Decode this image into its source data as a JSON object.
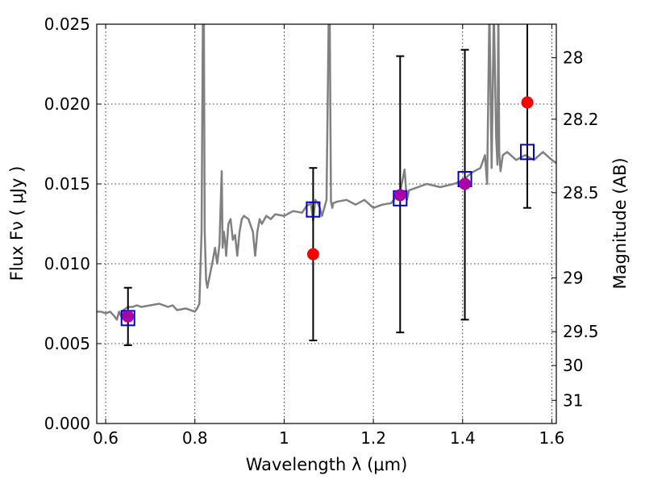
{
  "chart_data": {
    "type": "scatter",
    "xlabel": "Wavelength  λ (μm)",
    "ylabel": "Flux  Fν  ( μJy )",
    "ylabel_right": "Magnitude (AB)",
    "xlim": [
      0.58,
      1.61
    ],
    "ylim": [
      0,
      0.025
    ],
    "x_ticks": [
      0.6,
      0.8,
      1.0,
      1.2,
      1.4,
      1.6
    ],
    "x_tick_labels": [
      "0.6",
      "0.8",
      "1",
      "1.2",
      "1.4",
      "1.6"
    ],
    "y_ticks": [
      0,
      0.005,
      0.01,
      0.015,
      0.02,
      0.025
    ],
    "y_tick_labels": [
      "0.000",
      "0.005",
      "0.010",
      "0.015",
      "0.020",
      "0.025"
    ],
    "right_ticks": [
      {
        "mag": "28",
        "flux": 0.0229
      },
      {
        "mag": "28.2",
        "flux": 0.01905
      },
      {
        "mag": "28.5",
        "flux": 0.01445
      },
      {
        "mag": "29",
        "flux": 0.00912
      },
      {
        "mag": "29.5",
        "flux": 0.00575
      },
      {
        "mag": "30",
        "flux": 0.00363
      },
      {
        "mag": "31",
        "flux": 0.00145
      }
    ],
    "grid": true,
    "colors": {
      "spectrum": "#808080",
      "model_marker": "#0000cc",
      "observed": "#ff0000",
      "overlap": "#aa00aa",
      "errorbar": "#000000"
    },
    "spectrum": {
      "x": [
        0.58,
        0.59,
        0.6,
        0.61,
        0.62,
        0.625,
        0.63,
        0.635,
        0.64,
        0.645,
        0.65,
        0.66,
        0.67,
        0.68,
        0.7,
        0.72,
        0.74,
        0.75,
        0.76,
        0.78,
        0.79,
        0.8,
        0.805,
        0.81,
        0.815,
        0.818,
        0.82,
        0.822,
        0.825,
        0.828,
        0.83,
        0.84,
        0.845,
        0.85,
        0.855,
        0.86,
        0.862,
        0.865,
        0.868,
        0.87,
        0.875,
        0.88,
        0.885,
        0.89,
        0.895,
        0.9,
        0.905,
        0.91,
        0.92,
        0.93,
        0.935,
        0.94,
        0.945,
        0.95,
        0.96,
        0.97,
        0.98,
        1.0,
        1.02,
        1.04,
        1.05,
        1.06,
        1.065,
        1.07,
        1.075,
        1.08,
        1.085,
        1.09,
        1.095,
        1.1,
        1.102,
        1.105,
        1.108,
        1.11,
        1.12,
        1.14,
        1.16,
        1.18,
        1.2,
        1.22,
        1.24,
        1.26,
        1.27,
        1.275,
        1.28,
        1.3,
        1.32,
        1.35,
        1.38,
        1.4,
        1.42,
        1.44,
        1.45,
        1.455,
        1.46,
        1.465,
        1.47,
        1.475,
        1.478,
        1.48,
        1.482,
        1.485,
        1.49,
        1.5,
        1.52,
        1.54,
        1.56,
        1.58,
        1.6,
        1.61
      ],
      "y": [
        0.007,
        0.007,
        0.0069,
        0.007,
        0.0067,
        0.0065,
        0.007,
        0.0067,
        0.0071,
        0.0072,
        0.0073,
        0.0073,
        0.0074,
        0.0073,
        0.0074,
        0.0075,
        0.0073,
        0.0074,
        0.0071,
        0.0072,
        0.0071,
        0.007,
        0.0072,
        0.0075,
        0.012,
        0.026,
        0.026,
        0.012,
        0.009,
        0.0085,
        0.0088,
        0.0102,
        0.011,
        0.01,
        0.0112,
        0.0158,
        0.011,
        0.012,
        0.0113,
        0.0105,
        0.0125,
        0.0128,
        0.0115,
        0.0118,
        0.0105,
        0.012,
        0.0128,
        0.013,
        0.0128,
        0.012,
        0.0105,
        0.012,
        0.0128,
        0.0125,
        0.013,
        0.0128,
        0.0131,
        0.013,
        0.0133,
        0.0132,
        0.0136,
        0.0138,
        0.0127,
        0.014,
        0.0138,
        0.0135,
        0.013,
        0.0135,
        0.014,
        0.026,
        0.026,
        0.0139,
        0.0135,
        0.0138,
        0.0139,
        0.014,
        0.0137,
        0.014,
        0.0135,
        0.0137,
        0.0138,
        0.0145,
        0.0159,
        0.014,
        0.0146,
        0.0148,
        0.015,
        0.0148,
        0.015,
        0.0152,
        0.0157,
        0.016,
        0.0168,
        0.015,
        0.026,
        0.016,
        0.026,
        0.018,
        0.0162,
        0.026,
        0.017,
        0.0158,
        0.0168,
        0.017,
        0.0165,
        0.0168,
        0.0165,
        0.017,
        0.0165,
        0.0163
      ]
    },
    "series": [
      {
        "role": "model-markers",
        "marker": "open-square",
        "x": [
          0.65,
          1.065,
          1.26,
          1.405,
          1.545
        ],
        "y": [
          0.0066,
          0.0134,
          0.0141,
          0.0153,
          0.017
        ]
      },
      {
        "role": "observed",
        "marker": "filled-circle",
        "x": [
          0.65,
          1.065,
          1.26,
          1.405,
          1.545
        ],
        "y": [
          0.0067,
          0.0106,
          0.0143,
          0.015,
          0.0201
        ],
        "yerr_low": [
          0.0049,
          0.0052,
          0.0057,
          0.0065,
          0.0135
        ],
        "yerr_high": [
          0.0085,
          0.016,
          0.023,
          0.0234,
          0.0252
        ]
      }
    ]
  }
}
